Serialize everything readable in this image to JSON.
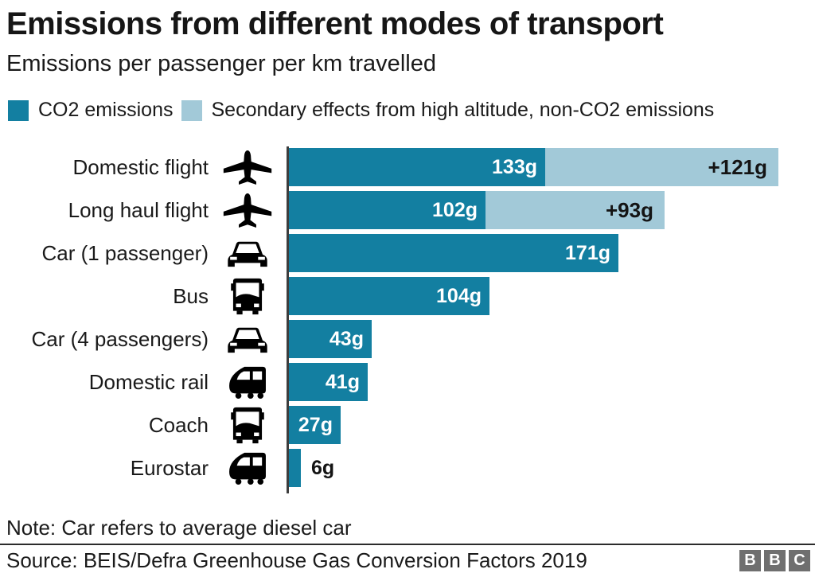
{
  "header": {
    "title": "Emissions from different modes of transport",
    "subtitle": "Emissions per passenger per km travelled"
  },
  "legend": [
    {
      "label": "CO2 emissions",
      "color": "#137fa1"
    },
    {
      "label": "Secondary effects from high altitude, non-CO2 emissions",
      "color": "#a2c9d8"
    }
  ],
  "chart_data": {
    "type": "bar",
    "orientation": "horizontal",
    "unit": "g per passenger per km",
    "xlim": [
      0,
      260
    ],
    "grid": false,
    "legend_position": "top",
    "categories": [
      "Domestic flight",
      "Long haul flight",
      "Car (1 passenger)",
      "Bus",
      "Car (4 passengers)",
      "Domestic rail",
      "Coach",
      "Eurostar"
    ],
    "icons": [
      "plane",
      "plane",
      "car",
      "bus",
      "car",
      "train",
      "bus",
      "train"
    ],
    "series": [
      {
        "name": "CO2 emissions",
        "color": "#137fa1",
        "values": [
          133,
          102,
          171,
          104,
          43,
          41,
          27,
          6
        ]
      },
      {
        "name": "Secondary effects from high altitude, non-CO2 emissions",
        "color": "#a2c9d8",
        "values": [
          121,
          93,
          0,
          0,
          0,
          0,
          0,
          0
        ]
      }
    ],
    "value_labels": [
      "133g",
      "102g",
      "171g",
      "104g",
      "43g",
      "41g",
      "27g",
      "6g"
    ],
    "secondary_labels": [
      "+121g",
      "+93g",
      "",
      "",
      "",
      "",
      "",
      ""
    ]
  },
  "footer": {
    "note": "Note: Car refers to average diesel car",
    "source": "Source: BEIS/Defra Greenhouse Gas Conversion Factors 2019",
    "logo_letters": [
      "B",
      "B",
      "C"
    ],
    "logo_color": "#6f6f6f"
  }
}
